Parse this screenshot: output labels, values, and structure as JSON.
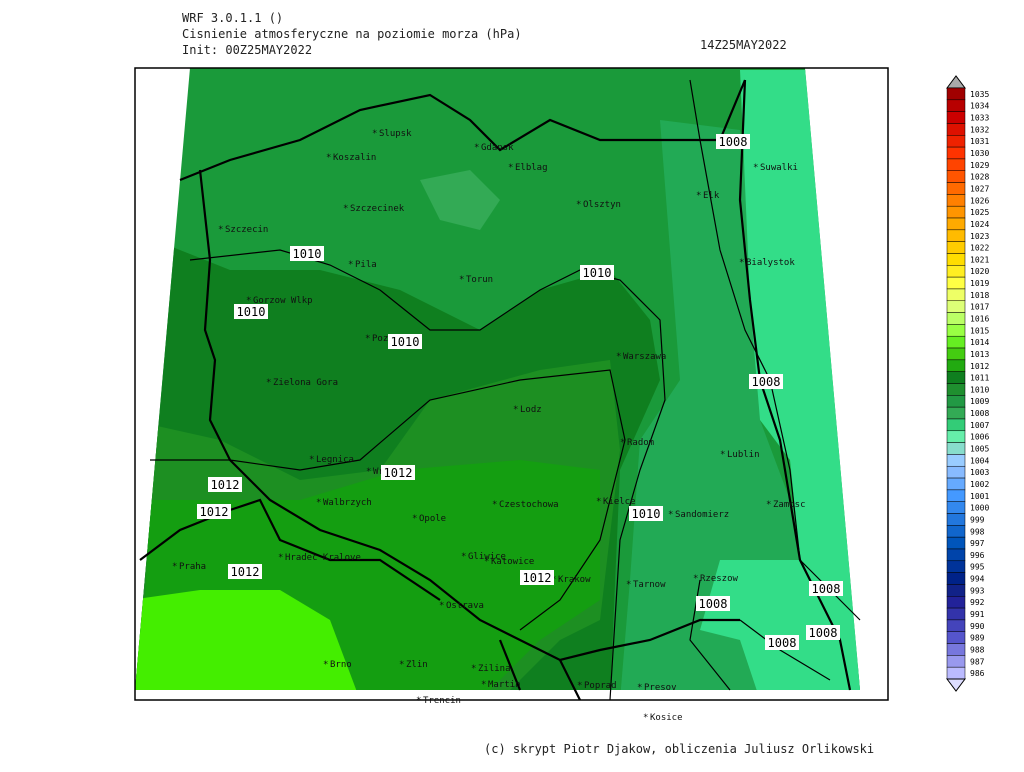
{
  "header": {
    "model": "WRF 3.0.1.1 ()",
    "field": "Cisnienie atmosferyczne na poziomie morza (hPa)",
    "init": "Init: 00Z25MAY2022",
    "valid": "14Z25MAY2022"
  },
  "cities": [
    "Slupsk",
    "Gdansk",
    "Koszalin",
    "Elblag",
    "Suwalki",
    "Szczecinek",
    "Olsztyn",
    "Elk",
    "Szczecin",
    "Pila",
    "Bialystok",
    "Torun",
    "Gorzow Wlkp",
    "Poznan",
    "Warszawa",
    "Zielona Gora",
    "Lodz",
    "Radom",
    "Lublin",
    "Legnica",
    "Wroclaw",
    "Kielce",
    "Walbrzych",
    "Czestochowa",
    "Opole",
    "Sandomierz",
    "Zamosc",
    "Hradec Kralove",
    "Gliwice",
    "Katowice",
    "Praha",
    "Krakow",
    "Tarnow",
    "Rzeszow",
    "Ostrava",
    "Brno",
    "Zlin",
    "Zilina",
    "Martin",
    "Poprad",
    "Presov",
    "Trencin",
    "Kosice"
  ],
  "isobars": [
    "1008",
    "1010",
    "1010",
    "1010",
    "1010",
    "1012",
    "1012",
    "1012",
    "1012",
    "1012",
    "1010",
    "1008",
    "1008",
    "1008",
    "1008",
    "1008"
  ],
  "colorbar": {
    "levels": [
      1035,
      1034,
      1033,
      1032,
      1031,
      1030,
      1029,
      1028,
      1027,
      1026,
      1025,
      1024,
      1023,
      1022,
      1021,
      1020,
      1019,
      1018,
      1017,
      1016,
      1015,
      1014,
      1013,
      1012,
      1011,
      1010,
      1009,
      1008,
      1007,
      1006,
      1005,
      1004,
      1003,
      1002,
      1001,
      1000,
      999,
      998,
      997,
      996,
      995,
      994,
      993,
      992,
      991,
      990,
      989,
      988,
      987,
      986
    ],
    "colors": [
      "#a00000",
      "#b80000",
      "#cc0000",
      "#dd1100",
      "#ee2200",
      "#ff3300",
      "#ff4400",
      "#ff5500",
      "#ff6a00",
      "#ff8000",
      "#ff9500",
      "#ffaa00",
      "#ffbb00",
      "#ffcc00",
      "#ffdd00",
      "#ffee22",
      "#ffff44",
      "#eeff66",
      "#ddff77",
      "#bbff66",
      "#99ff44",
      "#66ee22",
      "#44cc11",
      "#22aa11",
      "#0f7f1f",
      "#1f8f2f",
      "#229944",
      "#33aa55",
      "#33cc77",
      "#66eeaa",
      "#88ddcc",
      "#99ccff",
      "#88bbff",
      "#66aaff",
      "#4499ff",
      "#3388ee",
      "#2277dd",
      "#1166cc",
      "#0055bb",
      "#0044aa",
      "#003399",
      "#002288",
      "#112288",
      "#222299",
      "#3333aa",
      "#4444bb",
      "#5555cc",
      "#7777dd",
      "#9999ee",
      "#bbbbff"
    ]
  },
  "footer": "(c) skrypt Piotr Djakow, obliczenia Juliusz Orlikowski"
}
